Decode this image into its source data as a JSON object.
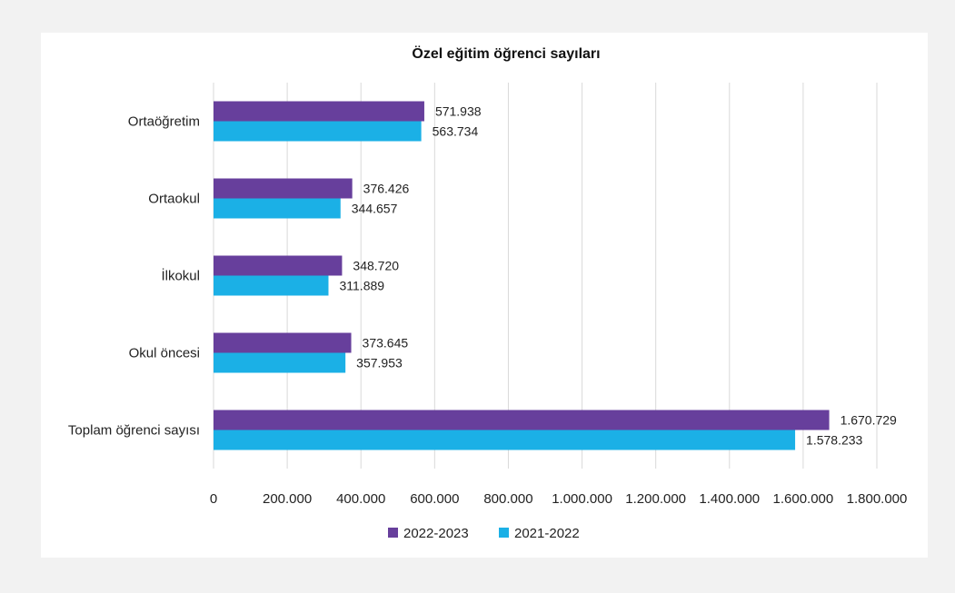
{
  "chart_data": {
    "type": "bar",
    "orientation": "horizontal",
    "title": "Özel eğitim öğrenci sayıları",
    "xlabel": "",
    "ylabel": "",
    "xlim": [
      0,
      1800000
    ],
    "x_ticks": [
      0,
      200000,
      400000,
      600000,
      800000,
      1000000,
      1200000,
      1400000,
      1600000,
      1800000
    ],
    "x_tick_labels": [
      "0",
      "200.000",
      "400.000",
      "600.000",
      "800.000",
      "1.000.000",
      "1.200.000",
      "1.400.000",
      "1.600.000",
      "1.800.000"
    ],
    "categories": [
      "Ortaöğretim",
      "Ortaokul",
      "İlkokul",
      "Okul öncesi",
      "Toplam öğrenci sayısı"
    ],
    "series": [
      {
        "name": "2022-2023",
        "color": "#673f9c",
        "values": [
          571938,
          376426,
          348720,
          373645,
          1670729
        ],
        "labels": [
          "571.938",
          "376.426",
          "348.720",
          "373.645",
          "1.670.729"
        ]
      },
      {
        "name": "2021-2022",
        "color": "#1bb0e6",
        "values": [
          563734,
          344657,
          311889,
          357953,
          1578233
        ],
        "labels": [
          "563.734",
          "344.657",
          "311.889",
          "357.953",
          "1.578.233"
        ]
      }
    ],
    "grid": true,
    "legend_position": "bottom"
  }
}
